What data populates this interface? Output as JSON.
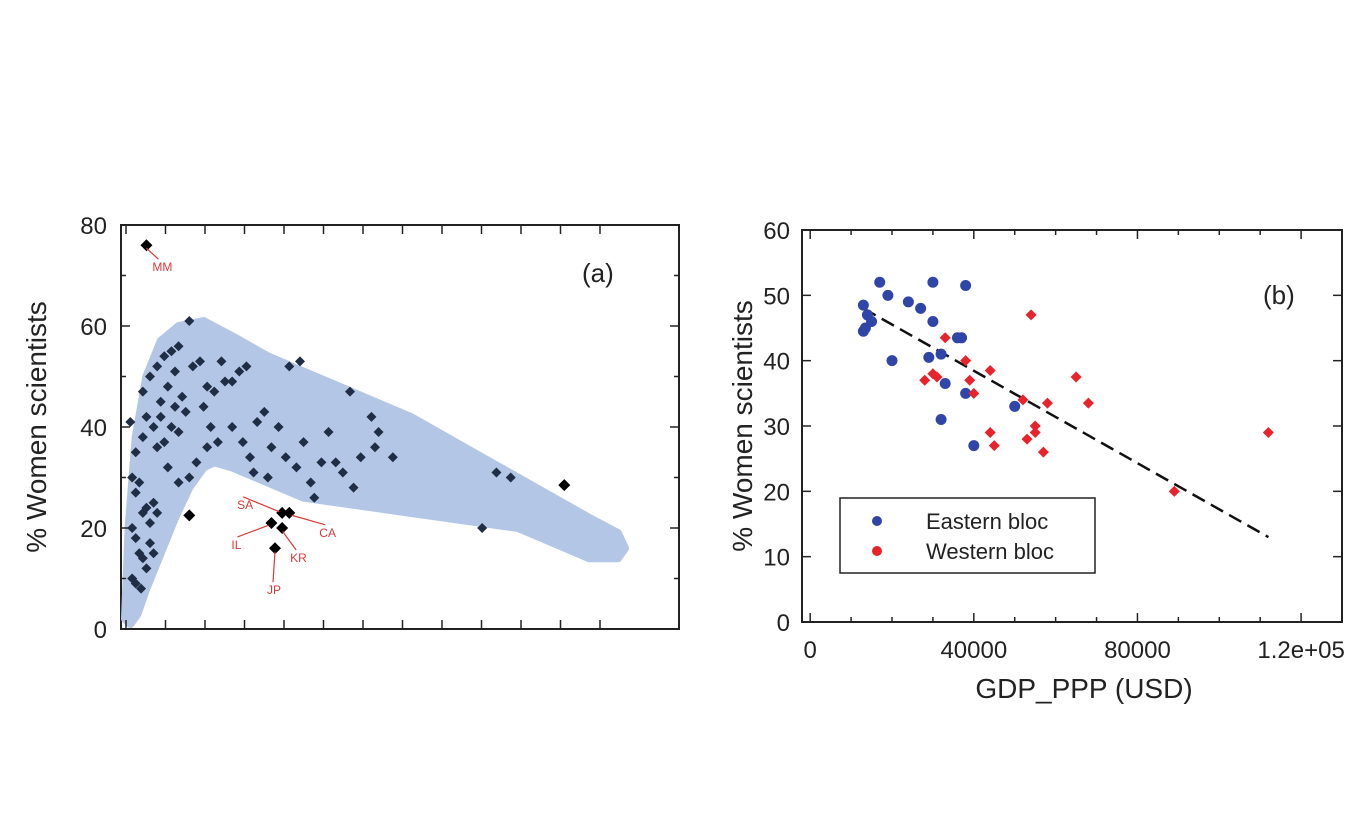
{
  "chart_data": [
    {
      "type": "scatter",
      "panel_label": "(a)",
      "title": "",
      "xlabel": "",
      "ylabel": "% Women scientists",
      "ylim": [
        0,
        80
      ],
      "yticks": [
        "0",
        "20",
        "40",
        "60",
        "80"
      ],
      "xlim": [
        0,
        14
      ],
      "xticks_count": 13,
      "x_tick_labels_shown": false,
      "band_color": "#b3c6e6",
      "point_color": "#1f2d45",
      "highlight_color": "#000000",
      "band_upper": [
        [
          0,
          2
        ],
        [
          0.1,
          20
        ],
        [
          0.3,
          38
        ],
        [
          0.6,
          50
        ],
        [
          1.0,
          57
        ],
        [
          1.5,
          60
        ],
        [
          2.2,
          61
        ],
        [
          3,
          58
        ],
        [
          4,
          54
        ],
        [
          5,
          51
        ],
        [
          6,
          48
        ],
        [
          7,
          45
        ],
        [
          8,
          42
        ],
        [
          9,
          38
        ],
        [
          10,
          34
        ],
        [
          11,
          30
        ],
        [
          12,
          26
        ],
        [
          13,
          22
        ],
        [
          13.8,
          19
        ],
        [
          14,
          16
        ]
      ],
      "band_lower": [
        [
          14,
          16
        ],
        [
          13.8,
          14
        ],
        [
          13,
          14
        ],
        [
          12,
          17
        ],
        [
          11,
          20
        ],
        [
          10,
          21
        ],
        [
          9,
          22
        ],
        [
          8,
          23
        ],
        [
          7,
          24
        ],
        [
          6,
          25
        ],
        [
          5,
          26
        ],
        [
          4,
          29
        ],
        [
          3,
          32
        ],
        [
          2.5,
          33
        ],
        [
          2.2,
          32
        ],
        [
          1.8,
          28
        ],
        [
          1.4,
          22
        ],
        [
          1.0,
          15
        ],
        [
          0.6,
          8
        ],
        [
          0.35,
          3
        ],
        [
          0.15,
          1
        ],
        [
          0,
          2
        ]
      ],
      "points": [
        [
          0.15,
          41
        ],
        [
          0.3,
          35
        ],
        [
          0.5,
          38
        ],
        [
          0.6,
          42
        ],
        [
          0.8,
          40
        ],
        [
          0.9,
          36
        ],
        [
          1.0,
          42
        ],
        [
          0.2,
          30
        ],
        [
          0.3,
          27
        ],
        [
          0.4,
          29
        ],
        [
          0.5,
          23
        ],
        [
          0.6,
          24
        ],
        [
          0.7,
          21
        ],
        [
          0.8,
          25
        ],
        [
          0.2,
          20
        ],
        [
          0.3,
          18
        ],
        [
          0.4,
          15
        ],
        [
          0.5,
          14
        ],
        [
          0.6,
          12
        ],
        [
          0.7,
          17
        ],
        [
          0.8,
          15
        ],
        [
          0.2,
          10
        ],
        [
          0.3,
          9
        ],
        [
          0.45,
          8
        ],
        [
          0.9,
          23
        ],
        [
          0.5,
          47
        ],
        [
          0.7,
          50
        ],
        [
          0.9,
          52
        ],
        [
          1.1,
          54
        ],
        [
          1.3,
          55
        ],
        [
          1.5,
          56
        ],
        [
          1.8,
          61
        ],
        [
          1.0,
          45
        ],
        [
          1.2,
          48
        ],
        [
          1.4,
          44
        ],
        [
          1.6,
          46
        ],
        [
          1.7,
          43
        ],
        [
          1.3,
          40
        ],
        [
          1.5,
          39
        ],
        [
          1.1,
          37
        ],
        [
          1.2,
          32
        ],
        [
          1.5,
          29
        ],
        [
          1.8,
          30
        ],
        [
          2.0,
          33
        ],
        [
          2.3,
          36
        ],
        [
          2.4,
          40
        ],
        [
          1.9,
          52
        ],
        [
          2.1,
          53
        ],
        [
          2.3,
          48
        ],
        [
          2.5,
          47
        ],
        [
          2.8,
          49
        ],
        [
          3.0,
          49
        ],
        [
          3.2,
          51
        ],
        [
          3.4,
          52
        ],
        [
          2.7,
          53
        ],
        [
          2.2,
          44
        ],
        [
          3.0,
          40
        ],
        [
          3.3,
          37
        ],
        [
          3.5,
          34
        ],
        [
          3.7,
          41
        ],
        [
          3.9,
          43
        ],
        [
          4.1,
          36
        ],
        [
          4.3,
          40
        ],
        [
          4.5,
          34
        ],
        [
          4.8,
          32
        ],
        [
          4.0,
          30
        ],
        [
          3.6,
          31
        ],
        [
          4.6,
          52
        ],
        [
          4.9,
          53
        ],
        [
          5.2,
          29
        ],
        [
          5.5,
          33
        ],
        [
          5.9,
          33
        ],
        [
          6.1,
          31
        ],
        [
          6.4,
          28
        ],
        [
          5.7,
          39
        ],
        [
          6.6,
          34
        ],
        [
          6.3,
          47
        ],
        [
          6.9,
          42
        ],
        [
          7.1,
          39
        ],
        [
          7.5,
          34
        ],
        [
          5.3,
          26
        ],
        [
          7.0,
          36
        ],
        [
          5.0,
          37
        ],
        [
          2.6,
          37
        ],
        [
          1.4,
          51
        ],
        [
          10.4,
          31
        ],
        [
          10.8,
          30
        ],
        [
          10.0,
          20
        ]
      ],
      "highlighted_points": [
        {
          "label": "MM",
          "x": 0.6,
          "y": 76
        },
        {
          "label": "",
          "x": 1.8,
          "y": 22.5
        },
        {
          "label": "SA",
          "x": 4.4,
          "y": 23
        },
        {
          "label": "CA",
          "x": 4.6,
          "y": 23
        },
        {
          "label": "IL",
          "x": 4.1,
          "y": 21
        },
        {
          "label": "KR",
          "x": 4.4,
          "y": 20
        },
        {
          "label": "JP",
          "x": 4.2,
          "y": 16
        },
        {
          "label": "",
          "x": 12.3,
          "y": 28.5
        }
      ]
    },
    {
      "type": "scatter",
      "panel_label": "(b)",
      "title": "",
      "xlabel": "GDP_PPP (USD)",
      "ylabel": "% Women scientists",
      "xlim": [
        -2000,
        130000
      ],
      "ylim": [
        0,
        60
      ],
      "xticks": [
        0,
        40000,
        80000,
        120000
      ],
      "xtick_labels": [
        "0",
        "40000",
        "80000",
        "1.2e+05"
      ],
      "yticks": [
        "0",
        "10",
        "20",
        "30",
        "40",
        "50",
        "60"
      ],
      "legend_position": "bottom-left",
      "trendline": {
        "x": [
          13000,
          112000
        ],
        "y": [
          48,
          13
        ]
      },
      "series": [
        {
          "name": "Eastern bloc",
          "color": "#2f45a8",
          "points": [
            [
              17000,
              52
            ],
            [
              19000,
              50
            ],
            [
              24000,
              49
            ],
            [
              27000,
              48
            ],
            [
              30000,
              52
            ],
            [
              38000,
              51.5
            ],
            [
              13000,
              48.5
            ],
            [
              14000,
              47
            ],
            [
              15000,
              46
            ],
            [
              13000,
              44.5
            ],
            [
              13500,
              45
            ],
            [
              20000,
              40
            ],
            [
              30000,
              46
            ],
            [
              32000,
              41
            ],
            [
              33000,
              36.5
            ],
            [
              36000,
              43.5
            ],
            [
              38000,
              35
            ],
            [
              37000,
              43.5
            ],
            [
              40000,
              27
            ],
            [
              32000,
              31
            ],
            [
              29000,
              40.5
            ],
            [
              50000,
              33
            ]
          ]
        },
        {
          "name": "Western bloc",
          "color": "#e8232b",
          "points": [
            [
              33000,
              43.5
            ],
            [
              38000,
              40
            ],
            [
              39000,
              37
            ],
            [
              30000,
              38
            ],
            [
              28000,
              37
            ],
            [
              31000,
              37.5
            ],
            [
              40000,
              35
            ],
            [
              44000,
              38.5
            ],
            [
              44000,
              29
            ],
            [
              45000,
              27
            ],
            [
              52000,
              34
            ],
            [
              54000,
              47
            ],
            [
              53000,
              28
            ],
            [
              55000,
              30
            ],
            [
              55000,
              29
            ],
            [
              57000,
              26
            ],
            [
              58000,
              33.5
            ],
            [
              65000,
              37.5
            ],
            [
              68000,
              33.5
            ],
            [
              89000,
              20
            ],
            [
              112000,
              29
            ]
          ]
        }
      ]
    }
  ]
}
